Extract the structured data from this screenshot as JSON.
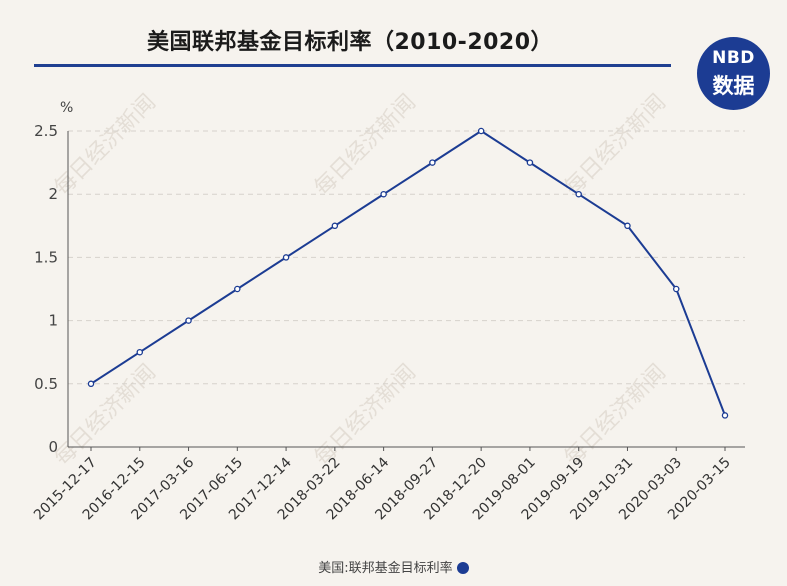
{
  "header": {
    "title": "美国联邦基金目标利率（2010-2020）",
    "logo_top": "NBD",
    "logo_bottom": "数据"
  },
  "watermark": "每日经济新闻",
  "colors": {
    "accent": "#1c3c93",
    "background": "#f6f3ee"
  },
  "chart_data": {
    "type": "line",
    "title": "美国联邦基金目标利率（2010-2020）",
    "ylabel": "%",
    "xlabel": "",
    "ylim": [
      0,
      2.5
    ],
    "yticks": [
      "0",
      "0.5",
      "1",
      "1.5",
      "2",
      "2.5"
    ],
    "grid": true,
    "legend_position": "bottom",
    "categories": [
      "2015-12-17",
      "2016-12-15",
      "2017-03-16",
      "2017-06-15",
      "2017-12-14",
      "2018-03-22",
      "2018-06-14",
      "2018-09-27",
      "2018-12-20",
      "2019-08-01",
      "2019-09-19",
      "2019-10-31",
      "2020-03-03",
      "2020-03-15"
    ],
    "series": [
      {
        "name": "美国:联邦基金目标利率",
        "color": "#1c3c93",
        "values": [
          0.5,
          0.75,
          1.0,
          1.25,
          1.5,
          1.75,
          2.0,
          2.25,
          2.5,
          2.25,
          2.0,
          1.75,
          1.25,
          0.25
        ]
      }
    ]
  }
}
